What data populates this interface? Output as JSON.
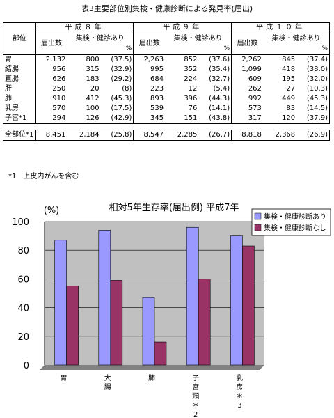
{
  "table": {
    "title": "表3主要部位別集検・健康診断による発見率(届出)",
    "site_header": "部位",
    "years": [
      "平成８年",
      "平成９年",
      "平成１０年"
    ],
    "col_reported": "届出数",
    "col_screened": "集検・健診あり",
    "percent_unit": "%",
    "rows": [
      {
        "site": "胃",
        "data": [
          [
            "2,132",
            "800",
            "(37.5)"
          ],
          [
            "2,263",
            "852",
            "(37.6)"
          ],
          [
            "2,262",
            "845",
            "(37.4)"
          ]
        ]
      },
      {
        "site": "結腸",
        "data": [
          [
            "956",
            "315",
            "(32.9)"
          ],
          [
            "995",
            "352",
            "(35.4)"
          ],
          [
            "1,099",
            "418",
            "(38.0)"
          ]
        ]
      },
      {
        "site": "直腸",
        "data": [
          [
            "626",
            "183",
            "(29.2)"
          ],
          [
            "684",
            "224",
            "(32.7)"
          ],
          [
            "609",
            "195",
            "(32.0)"
          ]
        ]
      },
      {
        "site": "肝",
        "data": [
          [
            "250",
            "20",
            "(8)"
          ],
          [
            "223",
            "12",
            "(5.4)"
          ],
          [
            "262",
            "27",
            "(10.3)"
          ]
        ]
      },
      {
        "site": "肺",
        "data": [
          [
            "910",
            "412",
            "(45.3)"
          ],
          [
            "893",
            "396",
            "(44.3)"
          ],
          [
            "992",
            "449",
            "(45.3)"
          ]
        ]
      },
      {
        "site": "乳房",
        "data": [
          [
            "570",
            "100",
            "(17.5)"
          ],
          [
            "539",
            "76",
            "(14.1)"
          ],
          [
            "573",
            "83",
            "(14.5)"
          ]
        ]
      },
      {
        "site": "子宮*1",
        "data": [
          [
            "294",
            "126",
            "(42.9)"
          ],
          [
            "345",
            "151",
            "(43.8)"
          ],
          [
            "317",
            "120",
            "(37.9)"
          ]
        ]
      }
    ],
    "total": {
      "site": "全部位*1",
      "data": [
        [
          "8,451",
          "2,184",
          "(25.8)"
        ],
        [
          "8,547",
          "2,285",
          "(26.7)"
        ],
        [
          "8,818",
          "2,368",
          "(26.9)"
        ]
      ]
    },
    "footnote": "*1　上皮内がんを含む"
  },
  "chart_data": {
    "type": "bar",
    "title": "相対5年生存率(届出例) 平成7年",
    "ylabel": "(%)",
    "ylim": [
      0,
      100
    ],
    "yticks": [
      0,
      20,
      40,
      60,
      80,
      100
    ],
    "grid": true,
    "legend_position": "top-right",
    "categories": [
      [
        "胃"
      ],
      [
        "大",
        "腸"
      ],
      [
        "肺"
      ],
      [
        "子",
        "宮",
        "頸",
        "＊",
        "2"
      ],
      [
        "乳",
        "房",
        "＊",
        "3"
      ]
    ],
    "series": [
      {
        "name": "集検・健康診断あり",
        "color": "#9999ff",
        "values": [
          87,
          94,
          47,
          96,
          90
        ]
      },
      {
        "name": "集検・健康診断なし",
        "color": "#993366",
        "values": [
          55,
          59,
          16,
          60,
          83
        ]
      }
    ],
    "plot_background": "#c0c0c0"
  }
}
